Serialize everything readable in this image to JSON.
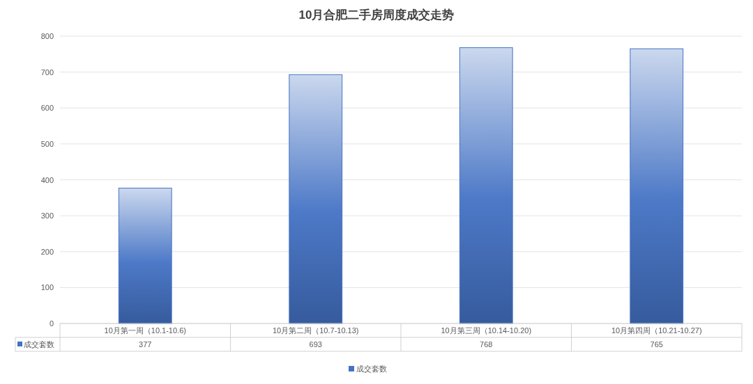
{
  "chart_data": {
    "type": "bar",
    "title": "10月合肥二手房周度成交走势",
    "categories": [
      "10月第一周（10.1-10.6)",
      "10月第二周（10.7-10.13)",
      "10月第三周（10.14-10.20)",
      "10月第四周（10.21-10.27)"
    ],
    "series": [
      {
        "name": "成交套数",
        "color": "#4472c4",
        "values": [
          377,
          693,
          768,
          765
        ]
      }
    ],
    "ylim": [
      0,
      800
    ],
    "yticks": [
      0,
      100,
      200,
      300,
      400,
      500,
      600,
      700,
      800
    ],
    "grid": "y",
    "legend": "bottom",
    "data_labels": true
  }
}
